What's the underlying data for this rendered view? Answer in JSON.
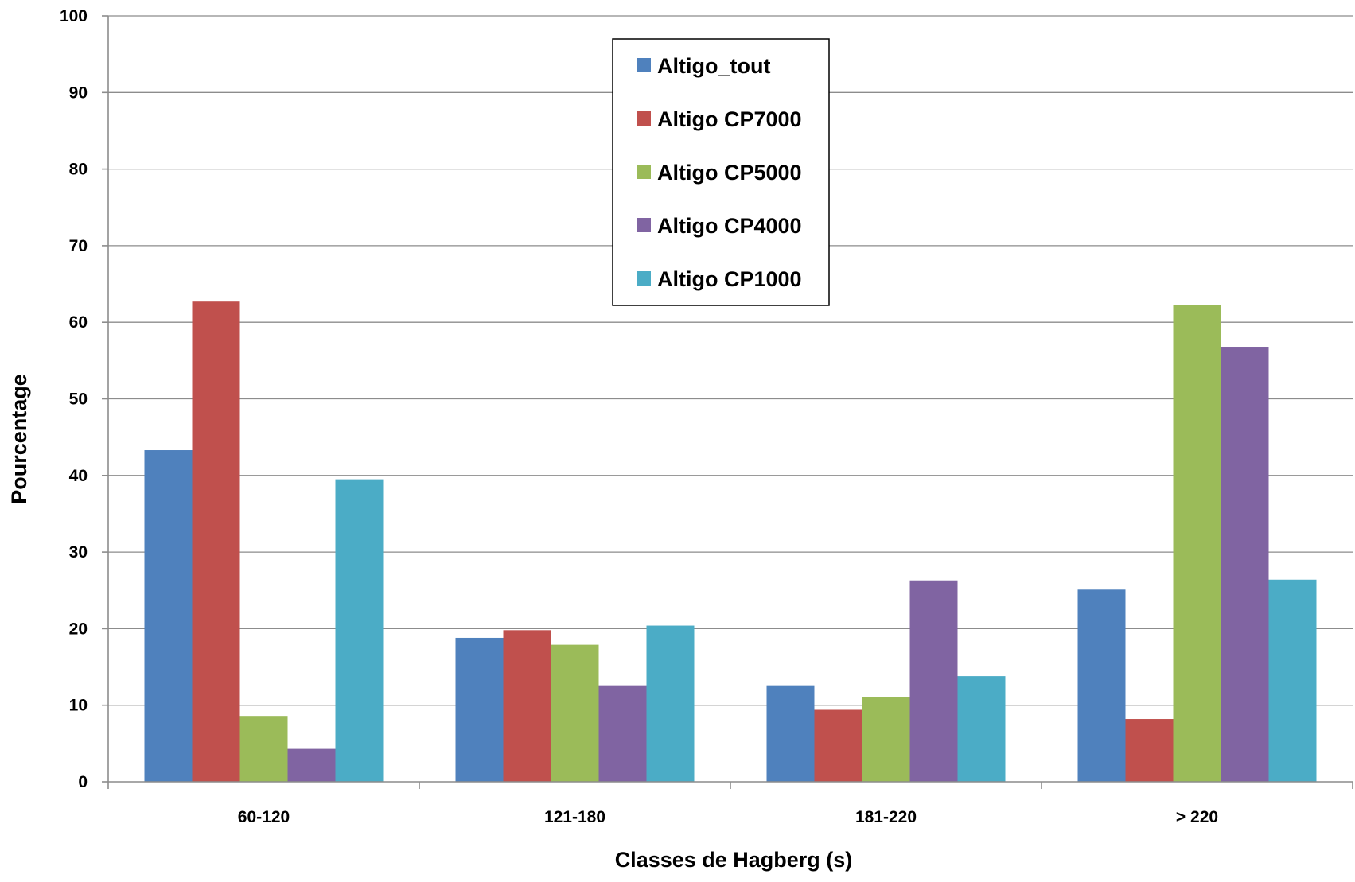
{
  "chart_data": {
    "type": "bar",
    "xlabel": "Classes de Hagberg (s)",
    "ylabel": "Pourcentage",
    "ylim": [
      0,
      100
    ],
    "yticks": [
      0,
      10,
      20,
      30,
      40,
      50,
      60,
      70,
      80,
      90,
      100
    ],
    "categories": [
      "60-120",
      "121-180",
      "181-220",
      "> 220"
    ],
    "grid": true,
    "legend_position": "top-center",
    "series": [
      {
        "name": "Altigo_tout",
        "color": "#4f81bd",
        "values": [
          43.3,
          18.8,
          12.6,
          25.1
        ]
      },
      {
        "name": "Altigo CP7000",
        "color": "#c0504d",
        "values": [
          62.7,
          19.8,
          9.4,
          8.2
        ]
      },
      {
        "name": "Altigo CP5000",
        "color": "#9bbb59",
        "values": [
          8.6,
          17.9,
          11.1,
          62.3
        ]
      },
      {
        "name": "Altigo CP4000",
        "color": "#8064a2",
        "values": [
          4.3,
          12.6,
          26.3,
          56.8
        ]
      },
      {
        "name": "Altigo CP1000",
        "color": "#4bacc6",
        "values": [
          39.5,
          20.4,
          13.8,
          26.4
        ]
      }
    ]
  }
}
